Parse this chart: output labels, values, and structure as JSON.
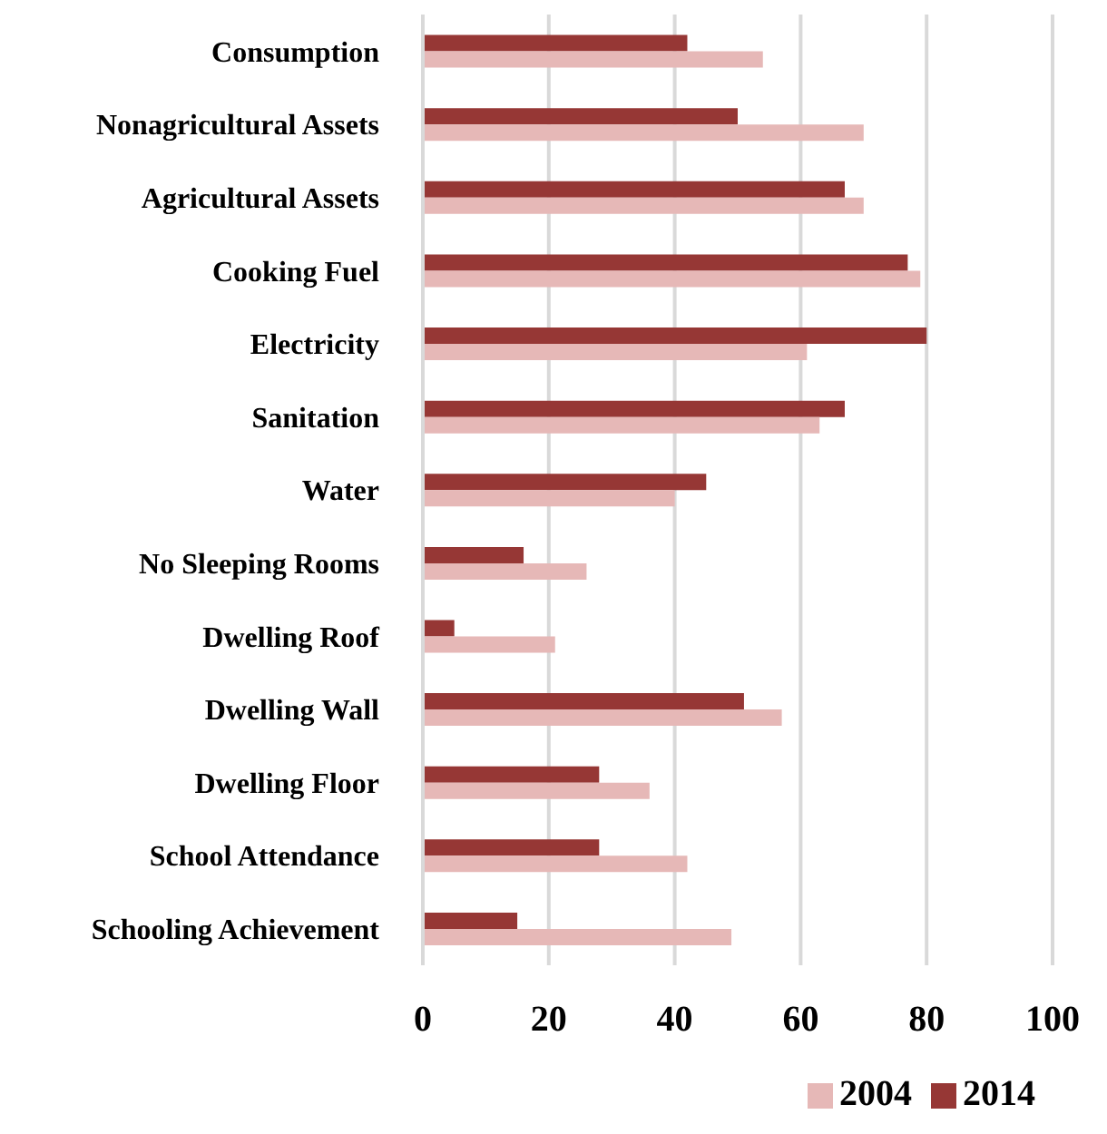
{
  "chart_data": {
    "type": "bar",
    "orientation": "horizontal",
    "categories": [
      "Consumption",
      "Nonagricultural Assets",
      "Agricultural Assets",
      "Cooking Fuel",
      "Electricity",
      "Sanitation",
      "Water",
      "No Sleeping Rooms",
      "Dwelling Roof",
      "Dwelling Wall",
      "Dwelling Floor",
      "School Attendance",
      "Schooling Achievement"
    ],
    "series": [
      {
        "name": "2014",
        "color": "#963735",
        "values": [
          42,
          50,
          67,
          77,
          80,
          67,
          45,
          16,
          5,
          51,
          28,
          28,
          15
        ]
      },
      {
        "name": "2004",
        "color": "#e6b8b7",
        "values": [
          54,
          70,
          70,
          79,
          61,
          63,
          40,
          26,
          21,
          57,
          36,
          42,
          49
        ]
      }
    ],
    "xlim": [
      0,
      100
    ],
    "xticks": [
      0,
      20,
      40,
      60,
      80,
      100
    ],
    "grid": "x",
    "legend": "bottom"
  }
}
